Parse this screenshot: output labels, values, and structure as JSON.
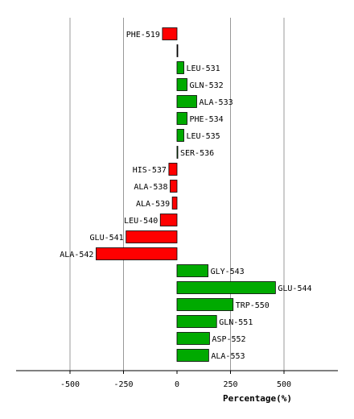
{
  "chart_data": {
    "type": "bar",
    "orientation": "horizontal",
    "title": "",
    "xlabel": "Percentage(%)",
    "ylabel": "",
    "xlim": [
      -750,
      750
    ],
    "xticks": [
      -500,
      -250,
      0,
      250,
      500
    ],
    "xtick_labels": [
      "-500",
      "-250",
      "0",
      "250",
      "500"
    ],
    "grid": "vertical",
    "legend": "none",
    "positive_color": "#00aa00",
    "negative_color": "#ff0000",
    "categories": [
      "PHE-519",
      "",
      "LEU-531",
      "GLN-532",
      "ALA-533",
      "PHE-534",
      "LEU-535",
      "SER-536",
      "HIS-537",
      "ALA-538",
      "ALA-539",
      "LEU-540",
      "GLU-541",
      "ALA-542",
      "GLY-543",
      "GLU-544",
      "TRP-550",
      "GLN-551",
      "ASP-552",
      "ALA-553"
    ],
    "values": [
      -68,
      0,
      32,
      47,
      92,
      47,
      32,
      3,
      -38,
      -32,
      -22,
      -78,
      -238,
      -378,
      145,
      460,
      262,
      185,
      152,
      148
    ]
  }
}
